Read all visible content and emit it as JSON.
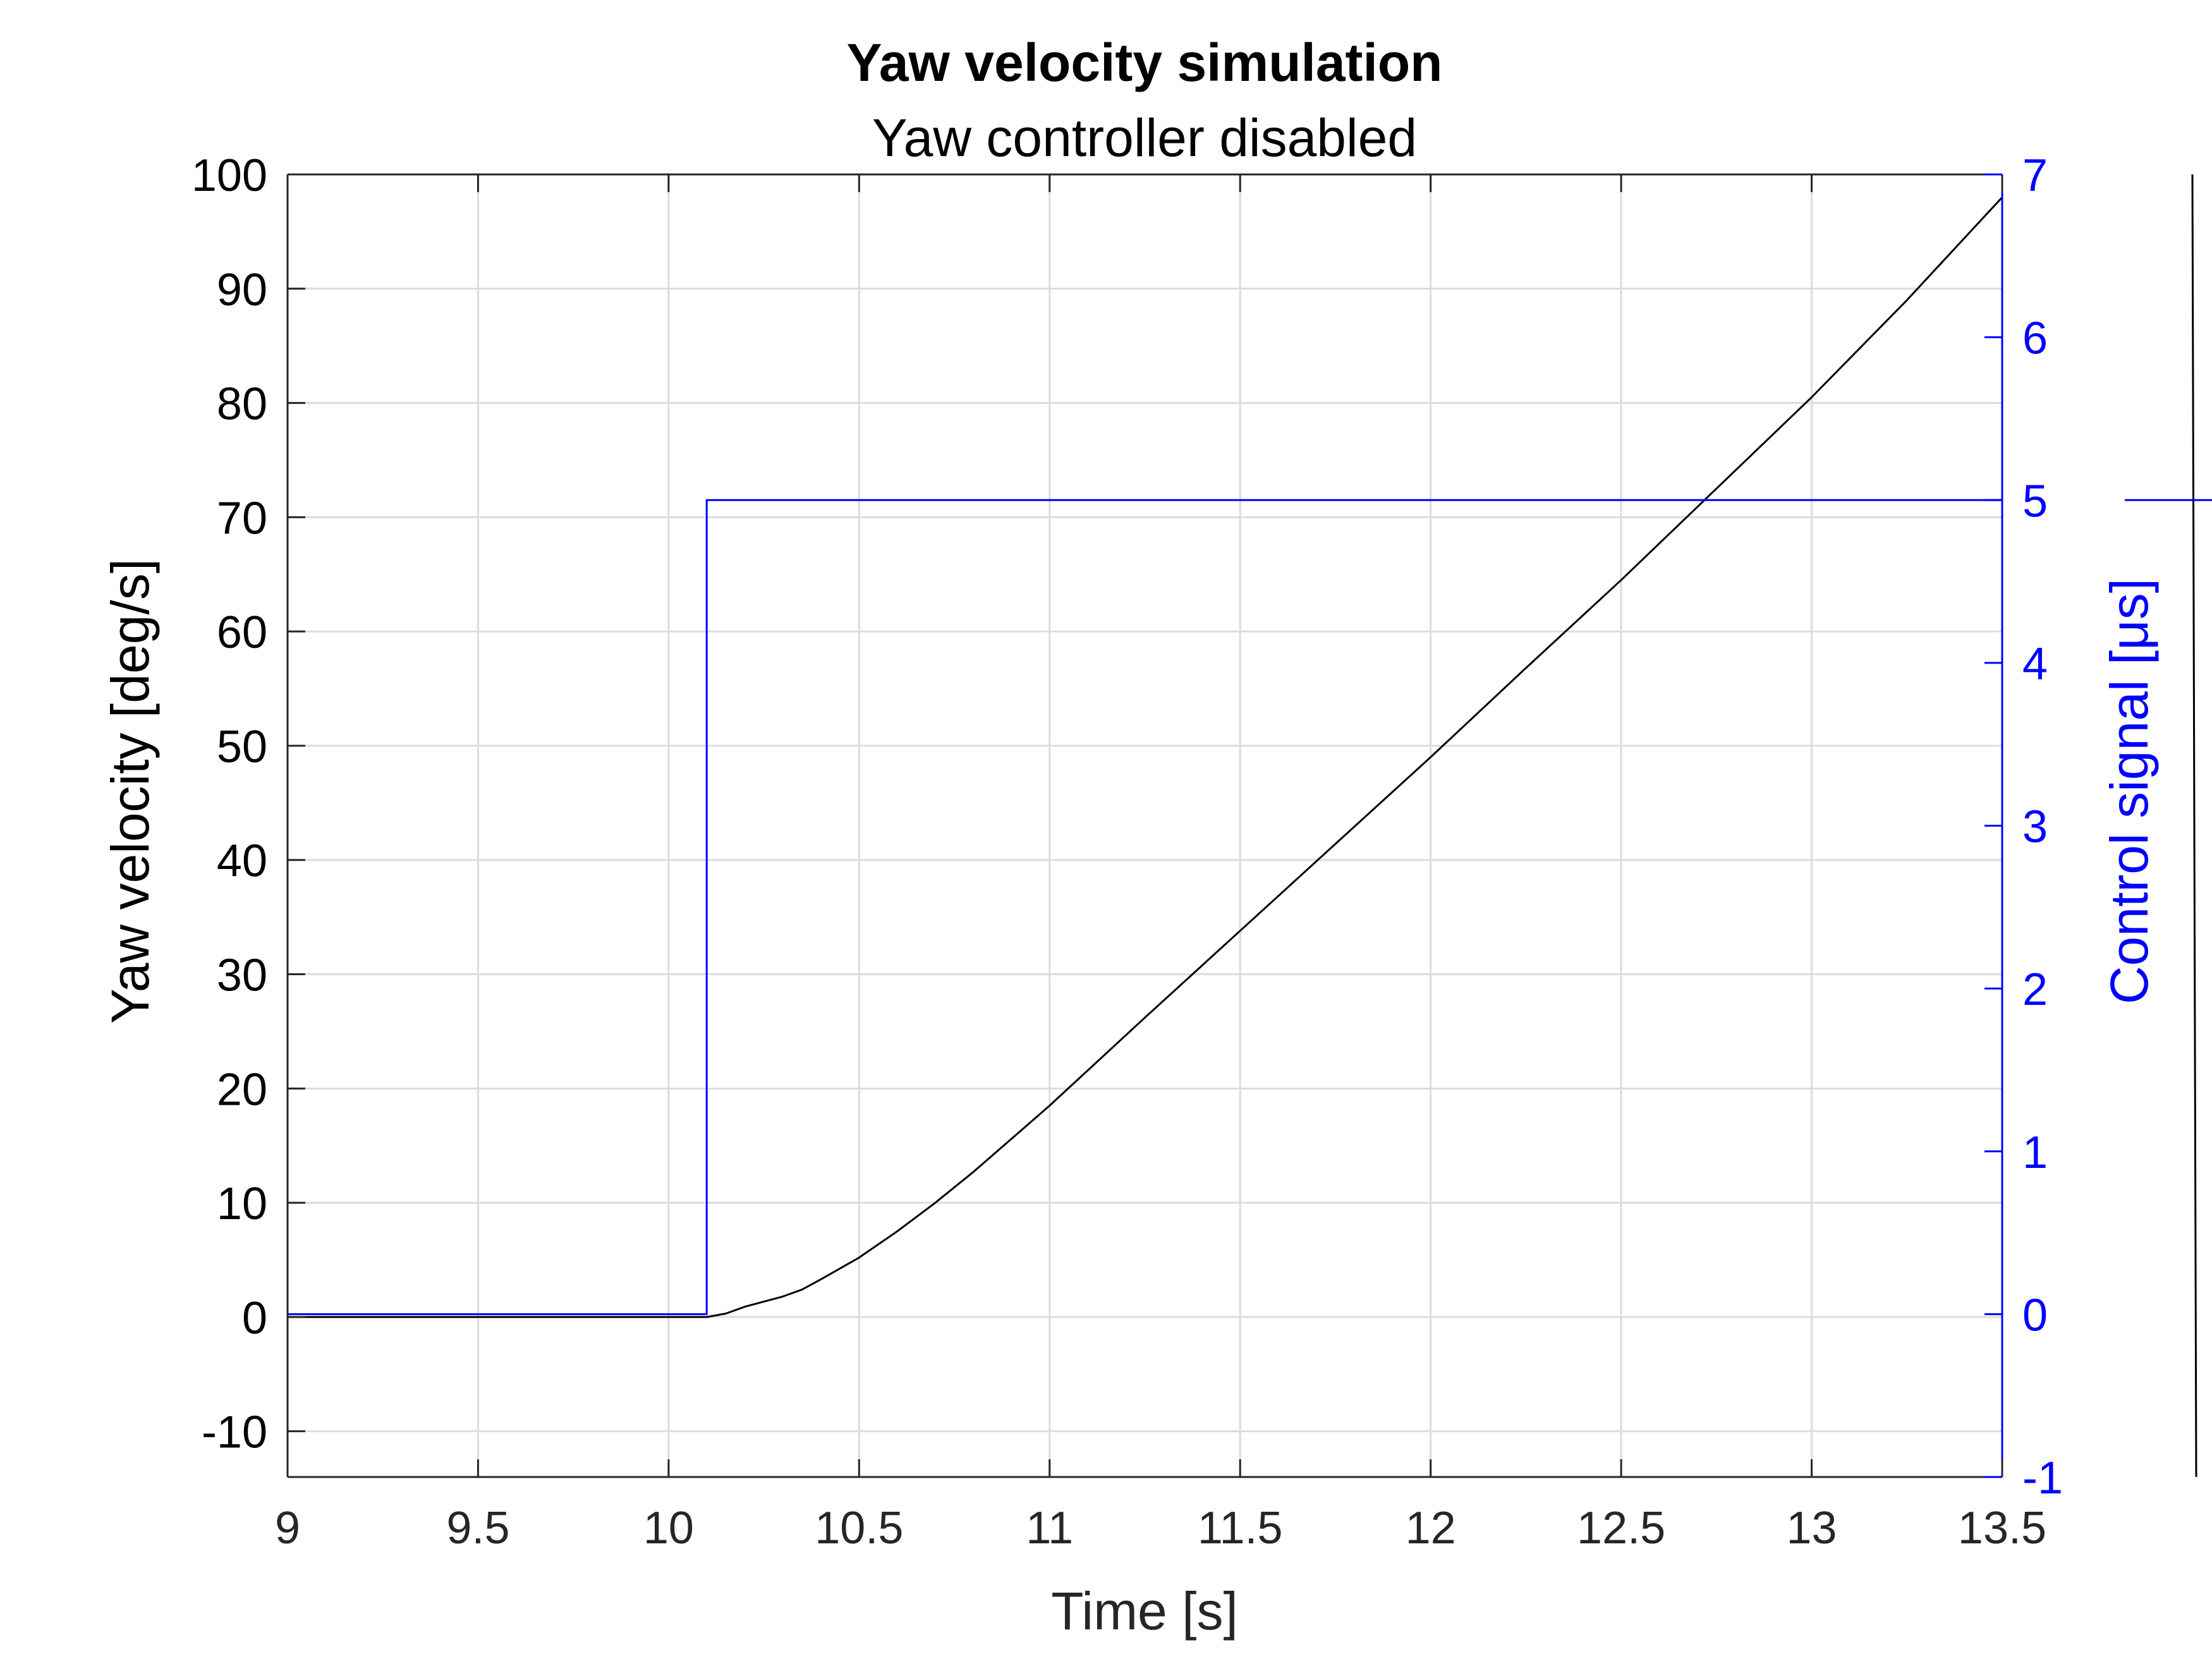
{
  "chart_data": {
    "type": "line",
    "title": "Yaw velocity simulation",
    "subtitle": "Yaw controller disabled",
    "xlabel": "Time [s]",
    "ylabel_left": "Yaw velocity [deg/s]",
    "ylabel_right": "Control signal [μs]",
    "xlim": [
      9,
      13.5
    ],
    "ylim_left": [
      -14,
      100
    ],
    "ylim_right": [
      -1,
      7
    ],
    "x_ticks": [
      "9",
      "9.5",
      "10",
      "10.5",
      "11",
      "11.5",
      "12",
      "12.5",
      "13",
      "13.5"
    ],
    "y_ticks_left": [
      "-10",
      "0",
      "10",
      "20",
      "30",
      "40",
      "50",
      "60",
      "70",
      "80",
      "90",
      "100"
    ],
    "y_ticks_right": [
      "-1",
      "0",
      "1",
      "2",
      "3",
      "4",
      "5",
      "6",
      "7"
    ],
    "grid": true,
    "series": [
      {
        "axis": "left",
        "color": "#000000",
        "x": [
          9,
          10.1,
          10.15,
          10.2,
          10.3,
          10.35,
          10.4,
          10.5,
          10.6,
          10.7,
          10.8,
          10.9,
          11.0,
          11.25,
          11.5,
          11.75,
          12.0,
          12.25,
          12.5,
          12.75,
          13.0,
          13.25,
          13.5
        ],
        "y": [
          0,
          0,
          0.3,
          0.9,
          1.8,
          2.4,
          3.3,
          5.2,
          7.5,
          10,
          12.7,
          15.6,
          18.5,
          26.2,
          33.8,
          41.4,
          49,
          56.8,
          64.5,
          72.5,
          80.5,
          89,
          98
        ]
      },
      {
        "axis": "right",
        "color": "#0000ff",
        "x": [
          9,
          10.1,
          10.1,
          13.5
        ],
        "y": [
          0,
          0,
          5,
          5
        ]
      }
    ]
  }
}
